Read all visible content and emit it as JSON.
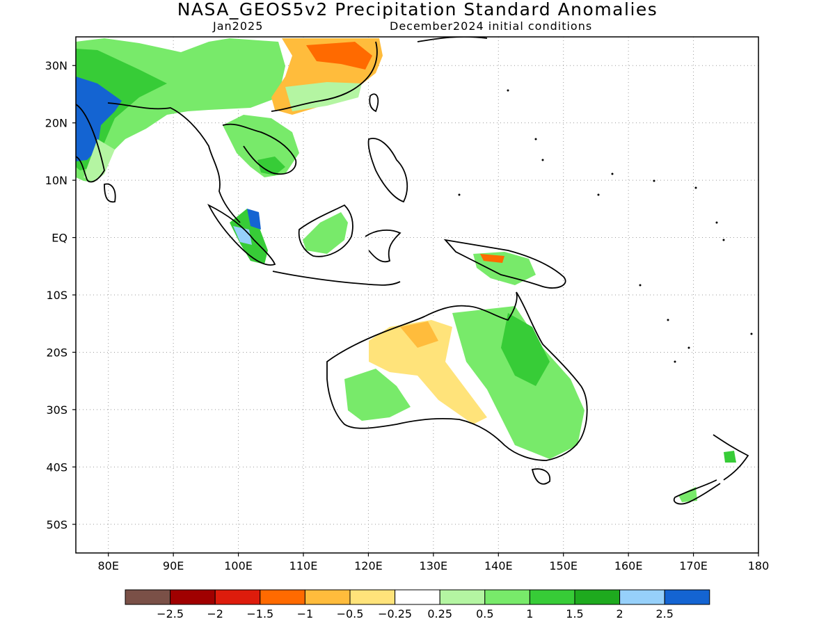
{
  "title": "NASA_GEOS5v2 Precipitation Standard Anomalies",
  "subtitle_left": "Jan2025",
  "subtitle_right": "December2024 initial conditions",
  "map": {
    "lon_range": [
      75,
      180
    ],
    "lat_range": [
      -55,
      35
    ],
    "x_tick_labels": [
      "80E",
      "90E",
      "100E",
      "110E",
      "120E",
      "130E",
      "140E",
      "150E",
      "160E",
      "170E",
      "180"
    ],
    "y_tick_labels": [
      "30N",
      "20N",
      "10N",
      "EQ",
      "10S",
      "20S",
      "30S",
      "40S",
      "50S"
    ],
    "grid": "dotted"
  },
  "colorbar": {
    "colors": [
      "#7a5047",
      "#a00000",
      "#dd1c0c",
      "#ff6a00",
      "#ffbc3c",
      "#ffe37a",
      "#ffffff",
      "#b4f5a2",
      "#78ea6a",
      "#37cc37",
      "#1eaa1e",
      "#96d0fa",
      "#1464d2"
    ],
    "labels": [
      "−2.5",
      "−2",
      "−1.5",
      "−1",
      "−0.5",
      "−0.25",
      "0.25",
      "0.5",
      "1",
      "1.5",
      "2",
      "2.5"
    ]
  }
}
